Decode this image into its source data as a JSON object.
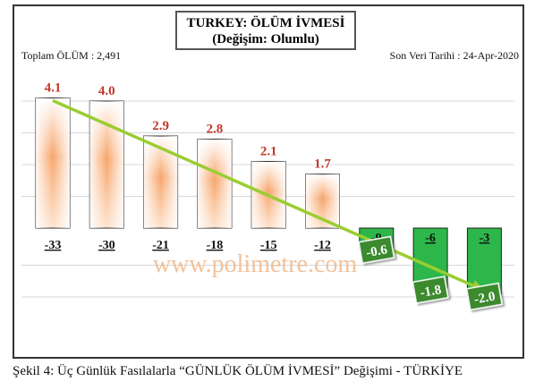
{
  "title": "TURKEY:  ÖLÜM İVMESİ",
  "subtitle": "(Değişim:  Olumlu)",
  "total_label": "Toplam ÖLÜM : 2,491",
  "date_label": "Son Veri Tarihi  : 24-Apr-2020",
  "watermark": "www.polimetre.com",
  "caption": "Şekil 4: Üç Günlük Fasılalarla “GÜNLÜK ÖLÜM İVMESİ” Değişimi - TÜRKİYE",
  "colors": {
    "positive_bar_top": "#f7a56b",
    "positive_bar_bottom": "#ffffff",
    "negative_bar": "#2db74a",
    "trend_line": "#9acd32",
    "positive_label": "#c0392b",
    "negative_label_bg": "#3a8a2e",
    "watermark": "#f0b88a"
  },
  "chart_data": {
    "type": "bar",
    "categories": [
      "-33",
      "-30",
      "-21",
      "-18",
      "-15",
      "-12",
      "-9",
      "-6",
      "-3"
    ],
    "values": [
      4.1,
      4.0,
      2.9,
      2.8,
      2.1,
      1.7,
      -0.6,
      -1.8,
      -2.0
    ],
    "value_labels": [
      "4.1",
      "4.0",
      "2.9",
      "2.8",
      "2.1",
      "1.7",
      "-0.6",
      "-1.8",
      "-2.0"
    ],
    "trend_line": {
      "from": 4.1,
      "to": -2.0
    },
    "ylim": [
      -2.5,
      4.3
    ],
    "grid": true,
    "xlabel": "",
    "ylabel": ""
  }
}
